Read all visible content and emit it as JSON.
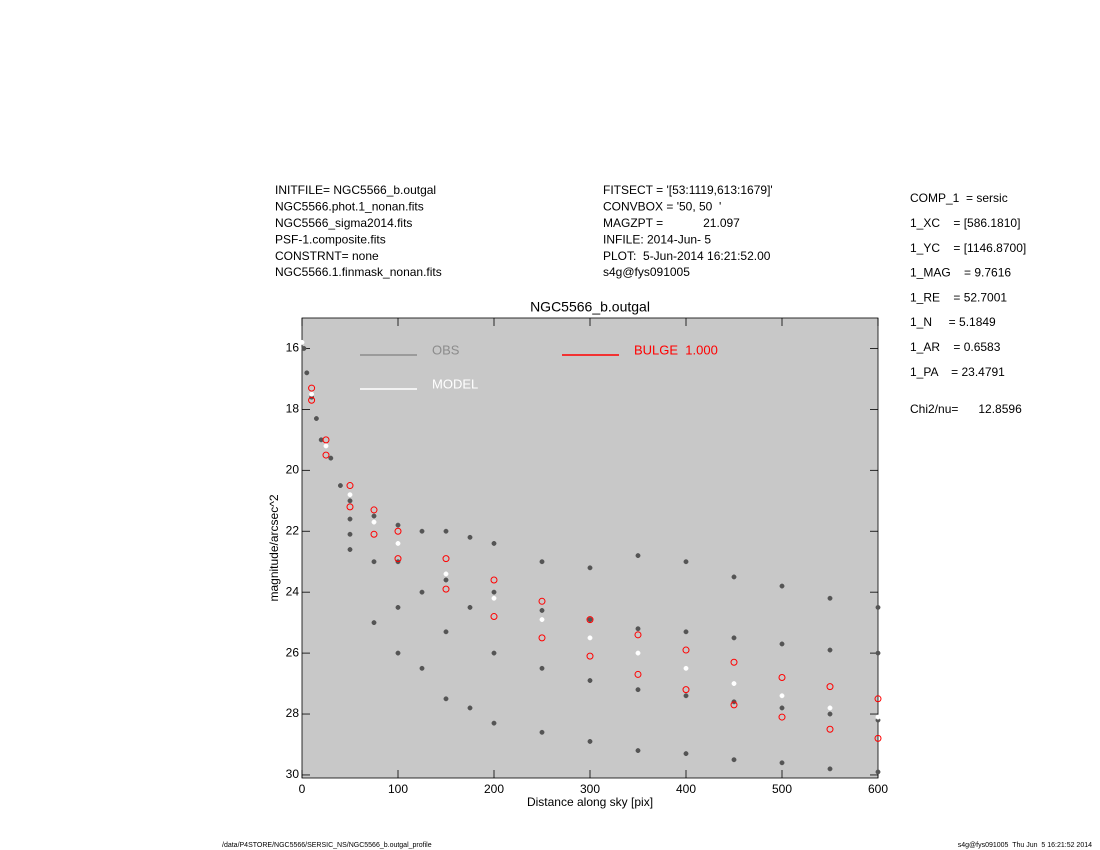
{
  "header": {
    "left": [
      "INITFILE= NGC5566_b.outgal",
      "NGC5566.phot.1_nonan.fits",
      "NGC5566_sigma2014.fits",
      "PSF-1.composite.fits",
      "CONSTRNT= none",
      "NGC5566.1.finmask_nonan.fits"
    ],
    "middle": [
      "FITSECT = '[53:1119,613:1679]'",
      "CONVBOX = '50, 50  '",
      "MAGZPT =            21.097",
      "INFILE: 2014-Jun- 5",
      "PLOT:  5-Jun-2014 16:21:52.00",
      "s4g@fys091005"
    ],
    "right": [
      "COMP_1  = sersic",
      "1_XC    = [586.1810]",
      "1_YC    = [1146.8700]",
      "1_MAG    = 9.7616",
      "1_RE    = 52.7001",
      "1_N     = 5.1849",
      "1_AR    = 0.6583",
      "1_PA    = 23.4791"
    ],
    "chi2": "Chi2/nu=      12.8596"
  },
  "footer": {
    "left": "/data/P4STORE/NGC5566/SERSIC_NS/NGC5566_b.outgal_profile",
    "right": "s4g@fys091005  Thu Jun  5 16:21:52 2014"
  },
  "chart_data": {
    "type": "scatter",
    "title": "NGC5566_b.outgal",
    "x_label": "Distance along sky [pix]",
    "y_label": "magnitude/arcsec^2",
    "xlim": [
      0,
      600
    ],
    "ylim": [
      30.1,
      15.0
    ],
    "xticks": [
      0,
      100,
      200,
      300,
      400,
      500,
      600
    ],
    "yticks": [
      16,
      18,
      20,
      22,
      24,
      26,
      28,
      30
    ],
    "background": "#c8c8c8",
    "series": [
      {
        "name": "OBS",
        "color": "#555555",
        "legend_color": "#8c8c8c",
        "x": [
          2,
          5,
          10,
          15,
          20,
          30,
          40,
          50,
          50,
          50,
          50,
          75,
          75,
          75,
          100,
          100,
          100,
          100,
          125,
          125,
          125,
          150,
          150,
          150,
          150,
          175,
          175,
          175,
          200,
          200,
          200,
          200,
          250,
          250,
          250,
          250,
          300,
          300,
          300,
          300,
          350,
          350,
          350,
          350,
          400,
          400,
          400,
          400,
          450,
          450,
          450,
          450,
          500,
          500,
          500,
          500,
          550,
          550,
          550,
          550,
          600,
          600,
          600,
          600
        ],
        "y": [
          16.0,
          16.8,
          17.6,
          18.3,
          19.0,
          19.6,
          20.5,
          21.0,
          21.6,
          22.1,
          22.6,
          21.5,
          23.0,
          25.0,
          21.8,
          23.0,
          24.5,
          26.0,
          22.0,
          24.0,
          26.5,
          22.0,
          23.6,
          25.3,
          27.5,
          22.2,
          24.5,
          27.8,
          22.4,
          24.0,
          26.0,
          28.3,
          23.0,
          24.6,
          26.5,
          28.6,
          23.2,
          24.9,
          26.9,
          28.9,
          22.8,
          25.2,
          27.2,
          29.2,
          23.0,
          25.3,
          27.4,
          29.3,
          23.5,
          25.5,
          27.6,
          29.5,
          23.8,
          25.7,
          27.8,
          29.6,
          24.2,
          25.9,
          28.0,
          29.8,
          24.5,
          26.0,
          28.2,
          29.9
        ]
      },
      {
        "name": "MODEL",
        "color": "#ffffff",
        "x": [
          0,
          10,
          25,
          50,
          75,
          100,
          150,
          200,
          250,
          300,
          350,
          400,
          450,
          500,
          550,
          600
        ],
        "y": [
          15.8,
          17.5,
          19.2,
          20.8,
          21.7,
          22.4,
          23.4,
          24.2,
          24.9,
          25.5,
          26.0,
          26.5,
          27.0,
          27.4,
          27.8,
          28.1
        ]
      },
      {
        "name": "BULGE  1.000",
        "color": "#ff0000",
        "x": [
          10,
          10,
          25,
          25,
          50,
          50,
          75,
          75,
          100,
          100,
          150,
          150,
          200,
          200,
          250,
          250,
          300,
          300,
          350,
          350,
          400,
          400,
          450,
          450,
          500,
          500,
          550,
          550,
          600,
          600
        ],
        "y": [
          17.3,
          17.7,
          19.0,
          19.5,
          20.5,
          21.2,
          21.3,
          22.1,
          22.0,
          22.9,
          22.9,
          23.9,
          23.6,
          24.8,
          24.3,
          25.5,
          24.9,
          26.1,
          25.4,
          26.7,
          25.9,
          27.2,
          26.3,
          27.7,
          26.8,
          28.1,
          27.1,
          28.5,
          27.5,
          28.8
        ]
      }
    ]
  }
}
